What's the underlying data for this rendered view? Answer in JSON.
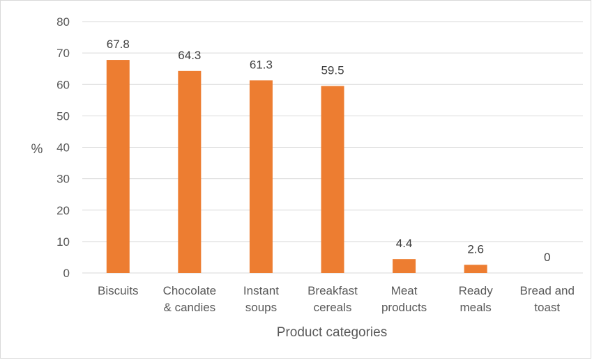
{
  "chart_data": {
    "type": "bar",
    "title": "",
    "xlabel": "Product categories",
    "ylabel": "%",
    "categories": [
      [
        "Biscuits"
      ],
      [
        "Chocolate",
        "& candies"
      ],
      [
        "Instant",
        "soups"
      ],
      [
        "Breakfast",
        "cereals"
      ],
      [
        "Meat",
        "products"
      ],
      [
        "Ready",
        "meals"
      ],
      [
        "Bread and",
        "toast"
      ]
    ],
    "values": [
      67.8,
      64.3,
      61.3,
      59.5,
      4.4,
      2.6,
      0
    ],
    "value_labels": [
      "67.8",
      "64.3",
      "61.3",
      "59.5",
      "4.4",
      "2.6",
      "0"
    ],
    "ylim": [
      0,
      80
    ],
    "yticks": [
      0,
      10,
      20,
      30,
      40,
      50,
      60,
      70,
      80
    ],
    "grid": true,
    "legend": "none",
    "bar_color": "#ed7d31"
  }
}
